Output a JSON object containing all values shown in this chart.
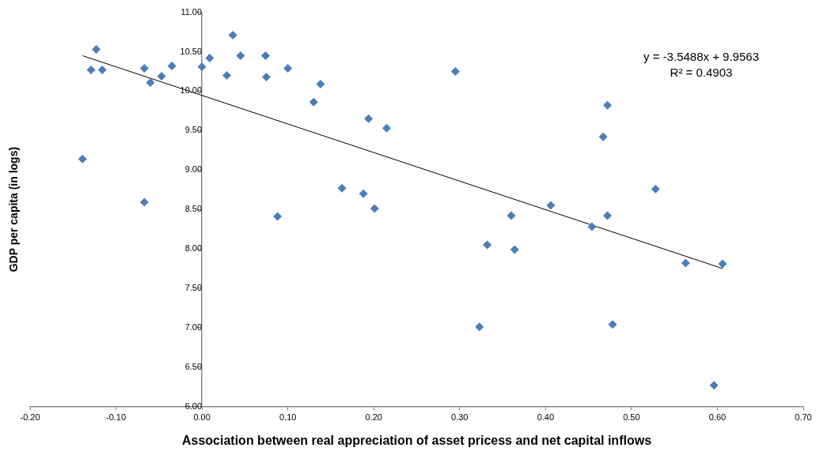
{
  "chart_data": {
    "type": "scatter",
    "xlabel": "Association between real appreciation of asset pricess and net capital inflows",
    "ylabel": "GDP per capita (in logs)",
    "xlim": [
      -0.2,
      0.7
    ],
    "xticks": [
      {
        "value": -0.2,
        "label": "-0.20"
      },
      {
        "value": -0.1,
        "label": "-0.10"
      },
      {
        "value": 0,
        "label": "0.00"
      },
      {
        "value": 0.1,
        "label": "0.10"
      },
      {
        "value": 0.2,
        "label": "0.20"
      },
      {
        "value": 0.3,
        "label": "0.30"
      },
      {
        "value": 0.4,
        "label": "0.40"
      },
      {
        "value": 0.5,
        "label": "0.50"
      },
      {
        "value": 0.6,
        "label": "0.60"
      },
      {
        "value": 0.7,
        "label": "0.70"
      }
    ],
    "ylim": [
      6,
      11
    ],
    "yticks": [
      {
        "value": 6,
        "label": "6.00"
      },
      {
        "value": 6.5,
        "label": "6.50"
      },
      {
        "value": 7,
        "label": "7.00"
      },
      {
        "value": 7.5,
        "label": "7.50"
      },
      {
        "value": 8,
        "label": "8.00"
      },
      {
        "value": 8.5,
        "label": "8.50"
      },
      {
        "value": 9,
        "label": "9.00"
      },
      {
        "value": 9.5,
        "label": "9.50"
      },
      {
        "value": 10,
        "label": "10.00"
      },
      {
        "value": 10.5,
        "label": "10.50"
      },
      {
        "value": 11,
        "label": "11.00"
      }
    ],
    "grid": false,
    "legend": false,
    "marker": "diamond",
    "series": [
      {
        "type": "scatter",
        "color": "#4a7ebb",
        "x": [
          -0.139,
          -0.129,
          -0.123,
          -0.116,
          -0.067,
          -0.067,
          -0.06,
          -0.047,
          -0.035,
          0.0,
          0.009,
          0.029,
          0.036,
          0.045,
          0.074,
          0.075,
          0.088,
          0.1,
          0.13,
          0.138,
          0.163,
          0.188,
          0.194,
          0.201,
          0.215,
          0.295,
          0.323,
          0.332,
          0.36,
          0.364,
          0.406,
          0.454,
          0.472,
          0.467,
          0.472,
          0.478,
          0.528,
          0.563,
          0.596,
          0.606
        ],
        "values": [
          9.14,
          10.27,
          10.53,
          10.27,
          10.29,
          8.59,
          10.11,
          10.19,
          10.32,
          10.31,
          10.42,
          10.2,
          10.71,
          10.45,
          10.45,
          10.18,
          8.41,
          10.29,
          9.86,
          10.09,
          8.77,
          8.7,
          9.65,
          8.51,
          9.53,
          10.25,
          7.01,
          8.05,
          8.42,
          7.99,
          8.55,
          8.28,
          9.82,
          9.42,
          8.42,
          7.04,
          8.76,
          7.82,
          6.27,
          7.81
        ]
      },
      {
        "type": "line",
        "color": "#000000",
        "marker": "none",
        "x": [
          -0.139,
          0.606
        ],
        "values": [
          10.45,
          7.75
        ]
      }
    ],
    "annotations": [
      "y = -3.5488x + 9.9563",
      "R² = 0.4903"
    ]
  }
}
